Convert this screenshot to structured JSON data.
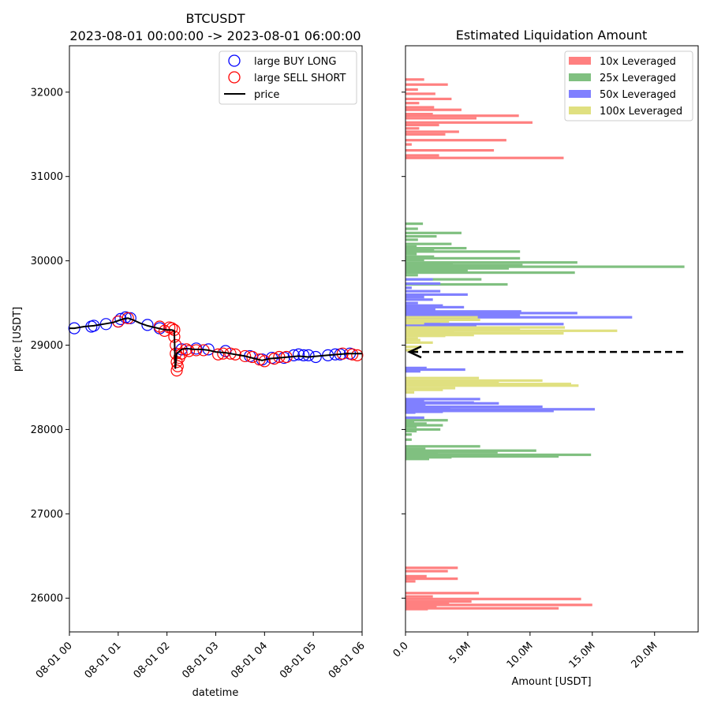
{
  "chart_data": [
    {
      "type": "line",
      "title_line1": "BTCUSDT",
      "title_line2": "2023-08-01 00:00:00 -> 2023-08-01 06:00:00",
      "xlabel": "datetime",
      "ylabel": "price [USDT]",
      "xlim_hours": [
        0,
        6
      ],
      "ylim": [
        25600,
        32550
      ],
      "xticks": [
        "08-01 00",
        "08-01 01",
        "08-01 02",
        "08-01 03",
        "08-01 04",
        "08-01 05",
        "08-01 06"
      ],
      "yticks": [
        26000,
        27000,
        28000,
        29000,
        30000,
        31000,
        32000
      ],
      "legend": [
        "large BUY LONG",
        "large SELL SHORT",
        "price"
      ],
      "price_series": {
        "name": "price",
        "hours": [
          0.0,
          0.1,
          0.3,
          0.5,
          0.7,
          0.9,
          1.0,
          1.1,
          1.2,
          1.3,
          1.45,
          1.6,
          1.75,
          1.9,
          2.0,
          2.1,
          2.15,
          2.17,
          2.2,
          2.3,
          2.4,
          2.55,
          2.7,
          2.85,
          3.0,
          3.2,
          3.4,
          3.6,
          3.8,
          3.95,
          4.1,
          4.3,
          4.5,
          4.7,
          4.9,
          5.1,
          5.3,
          5.5,
          5.7,
          5.9,
          6.0
        ],
        "values": [
          29200,
          29200,
          29220,
          29230,
          29250,
          29270,
          29290,
          29310,
          29320,
          29300,
          29260,
          29230,
          29210,
          29190,
          29180,
          29180,
          29170,
          28720,
          28900,
          28950,
          28960,
          28950,
          28950,
          28940,
          28920,
          28910,
          28890,
          28870,
          28840,
          28820,
          28840,
          28850,
          28860,
          28870,
          28860,
          28870,
          28880,
          28890,
          28900,
          28900,
          28900
        ]
      },
      "buy_long": {
        "name": "large BUY LONG",
        "hours": [
          0.1,
          0.45,
          0.5,
          0.75,
          1.0,
          1.05,
          1.15,
          1.25,
          1.6,
          1.85,
          2.3,
          2.6,
          2.85,
          3.2,
          3.7,
          3.95,
          4.15,
          4.4,
          4.6,
          4.7,
          4.8,
          4.9,
          5.05,
          5.3,
          5.45,
          5.55,
          5.75
        ],
        "values": [
          29200,
          29220,
          29230,
          29250,
          29280,
          29310,
          29330,
          29320,
          29240,
          29200,
          28950,
          28960,
          28950,
          28930,
          28870,
          28830,
          28850,
          28850,
          28880,
          28890,
          28880,
          28880,
          28860,
          28880,
          28890,
          28890,
          28900
        ]
      },
      "sell_short": {
        "name": "large SELL SHORT",
        "hours": [
          1.0,
          1.2,
          1.85,
          1.95,
          2.05,
          2.1,
          2.15,
          2.15,
          2.18,
          2.18,
          2.2,
          2.2,
          2.22,
          2.25,
          2.3,
          2.4,
          2.45,
          2.6,
          2.75,
          3.05,
          3.15,
          3.3,
          3.4,
          3.6,
          3.75,
          3.9,
          4.0,
          4.2,
          4.3,
          4.45,
          5.6,
          5.8,
          5.9
        ],
        "values": [
          29280,
          29320,
          29220,
          29170,
          29210,
          29200,
          29180,
          29100,
          29000,
          28900,
          28800,
          28700,
          28750,
          28850,
          28900,
          28950,
          28930,
          28940,
          28940,
          28890,
          28900,
          28900,
          28890,
          28870,
          28860,
          28830,
          28810,
          28840,
          28860,
          28860,
          28900,
          28890,
          28880
        ]
      }
    },
    {
      "type": "bar",
      "orientation": "horizontal",
      "title": "Estimated Liquidation Amount",
      "xlabel": "Amount [USDT]",
      "xlim": [
        0,
        23500000
      ],
      "xticks": [
        "0.0",
        "5.0M",
        "10.0M",
        "15.0M",
        "20.0M"
      ],
      "current_price": 28920,
      "current_price_arrow_end_amount": 22300000,
      "series": [
        {
          "name": "10x Leveraged",
          "color": "#ff8080",
          "bars": [
            [
              32150,
              1500000
            ],
            [
              32090,
              3400000
            ],
            [
              32030,
              1000000
            ],
            [
              31980,
              2400000
            ],
            [
              31920,
              3700000
            ],
            [
              31870,
              1100000
            ],
            [
              31820,
              2300000
            ],
            [
              31790,
              4500000
            ],
            [
              31740,
              2200000
            ],
            [
              31720,
              9100000
            ],
            [
              31690,
              5700000
            ],
            [
              31640,
              10200000
            ],
            [
              31610,
              2700000
            ],
            [
              31570,
              1100000
            ],
            [
              31530,
              4300000
            ],
            [
              31500,
              3200000
            ],
            [
              31430,
              8100000
            ],
            [
              31380,
              500000
            ],
            [
              31310,
              7100000
            ],
            [
              31250,
              2700000
            ],
            [
              31220,
              12700000
            ],
            [
              26360,
              4200000
            ],
            [
              26320,
              3400000
            ],
            [
              26260,
              1700000
            ],
            [
              26230,
              4200000
            ],
            [
              26200,
              800000
            ],
            [
              26060,
              5900000
            ],
            [
              26020,
              2200000
            ],
            [
              25990,
              14100000
            ],
            [
              25960,
              5300000
            ],
            [
              25940,
              3500000
            ],
            [
              25920,
              15000000
            ],
            [
              25900,
              2500000
            ],
            [
              25880,
              12300000
            ],
            [
              25870,
              1800000
            ]
          ]
        },
        {
          "name": "25x Leveraged",
          "color": "#80c080",
          "bars": [
            [
              30440,
              1400000
            ],
            [
              30380,
              1000000
            ],
            [
              30330,
              4500000
            ],
            [
              30290,
              2500000
            ],
            [
              30250,
              1000000
            ],
            [
              30200,
              3700000
            ],
            [
              30170,
              900000
            ],
            [
              30150,
              4900000
            ],
            [
              30130,
              2300000
            ],
            [
              30110,
              9200000
            ],
            [
              30080,
              900000
            ],
            [
              30050,
              2300000
            ],
            [
              30030,
              9200000
            ],
            [
              30010,
              1500000
            ],
            [
              29980,
              13800000
            ],
            [
              29960,
              3800000
            ],
            [
              29950,
              9400000
            ],
            [
              29930,
              22400000
            ],
            [
              29910,
              8300000
            ],
            [
              29890,
              5000000
            ],
            [
              29860,
              13600000
            ],
            [
              29830,
              1000000
            ],
            [
              29780,
              6100000
            ],
            [
              29720,
              8200000
            ],
            [
              28140,
              1500000
            ],
            [
              28110,
              3400000
            ],
            [
              28090,
              700000
            ],
            [
              28070,
              1700000
            ],
            [
              28050,
              3000000
            ],
            [
              28030,
              900000
            ],
            [
              28000,
              2800000
            ],
            [
              27980,
              900000
            ],
            [
              27940,
              500000
            ],
            [
              27880,
              500000
            ],
            [
              27800,
              6000000
            ],
            [
              27770,
              1600000
            ],
            [
              27750,
              10500000
            ],
            [
              27730,
              7400000
            ],
            [
              27720,
              2600000
            ],
            [
              27700,
              14900000
            ],
            [
              27680,
              12300000
            ],
            [
              27670,
              3700000
            ],
            [
              27650,
              1900000
            ]
          ]
        },
        {
          "name": "50x Leveraged",
          "color": "#8080ff",
          "bars": [
            [
              29780,
              2200000
            ],
            [
              29730,
              2800000
            ],
            [
              29680,
              500000
            ],
            [
              29640,
              2800000
            ],
            [
              29600,
              5000000
            ],
            [
              29570,
              1500000
            ],
            [
              29540,
              2200000
            ],
            [
              29500,
              1000000
            ],
            [
              29470,
              3000000
            ],
            [
              29450,
              4700000
            ],
            [
              29420,
              2400000
            ],
            [
              29400,
              9300000
            ],
            [
              29380,
              13800000
            ],
            [
              29360,
              5700000
            ],
            [
              29350,
              9200000
            ],
            [
              29330,
              18200000
            ],
            [
              29310,
              5200000
            ],
            [
              29290,
              2800000
            ],
            [
              29270,
              2800000
            ],
            [
              29250,
              12700000
            ],
            [
              29240,
              5700000
            ],
            [
              29220,
              3000000
            ],
            [
              29200,
              500000
            ],
            [
              28730,
              1700000
            ],
            [
              28710,
              4800000
            ],
            [
              28690,
              1200000
            ],
            [
              28480,
              700000
            ],
            [
              28360,
              6000000
            ],
            [
              28340,
              1500000
            ],
            [
              28320,
              5500000
            ],
            [
              28310,
              7500000
            ],
            [
              28290,
              1600000
            ],
            [
              28270,
              11000000
            ],
            [
              28250,
              3600000
            ],
            [
              28240,
              15200000
            ],
            [
              28220,
              11900000
            ],
            [
              28210,
              3000000
            ],
            [
              28200,
              800000
            ],
            [
              28140,
              1500000
            ]
          ]
        },
        {
          "name": "100x Leveraged",
          "color": "#e0e080",
          "bars": [
            [
              29330,
              5800000
            ],
            [
              29300,
              6000000
            ],
            [
              29280,
              3500000
            ],
            [
              29260,
              1500000
            ],
            [
              29210,
              12800000
            ],
            [
              29190,
              9200000
            ],
            [
              29170,
              17000000
            ],
            [
              29150,
              3900000
            ],
            [
              29140,
              12700000
            ],
            [
              29120,
              5500000
            ],
            [
              29110,
              3200000
            ],
            [
              29080,
              1000000
            ],
            [
              29060,
              1200000
            ],
            [
              29030,
              2200000
            ],
            [
              28980,
              1200000
            ],
            [
              28940,
              1000000
            ],
            [
              28610,
              5900000
            ],
            [
              28580,
              11000000
            ],
            [
              28560,
              7500000
            ],
            [
              28540,
              13300000
            ],
            [
              28520,
              13900000
            ],
            [
              28490,
              4000000
            ],
            [
              28470,
              3000000
            ],
            [
              28440,
              700000
            ]
          ]
        }
      ]
    }
  ]
}
